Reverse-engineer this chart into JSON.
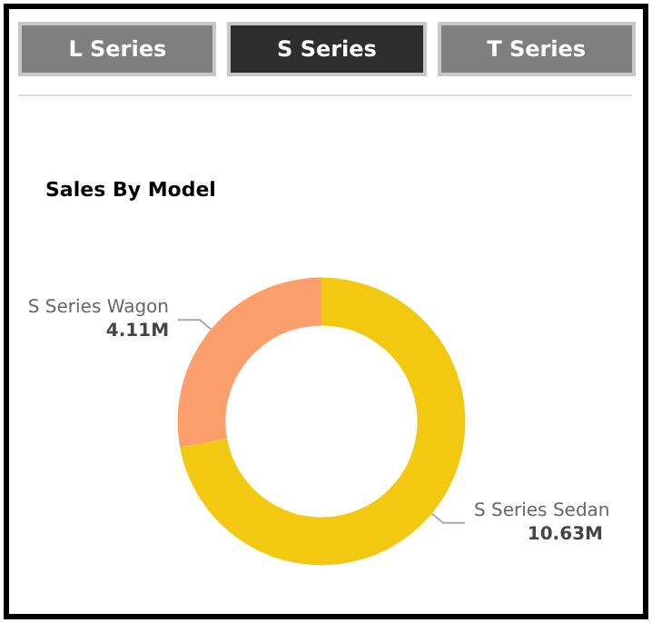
{
  "chart_data": {
    "type": "donut",
    "title": "Sales By Model",
    "annotations": [
      "L Series",
      "S Series",
      "T Series"
    ],
    "categories": [
      "S Series Sedan",
      "S Series Wagon"
    ],
    "values": [
      10.63,
      4.11
    ],
    "value_labels": [
      "10.63M",
      "4.11M"
    ],
    "colors": [
      "#f2c811",
      "#fd9f6c"
    ],
    "legend": false
  }
}
